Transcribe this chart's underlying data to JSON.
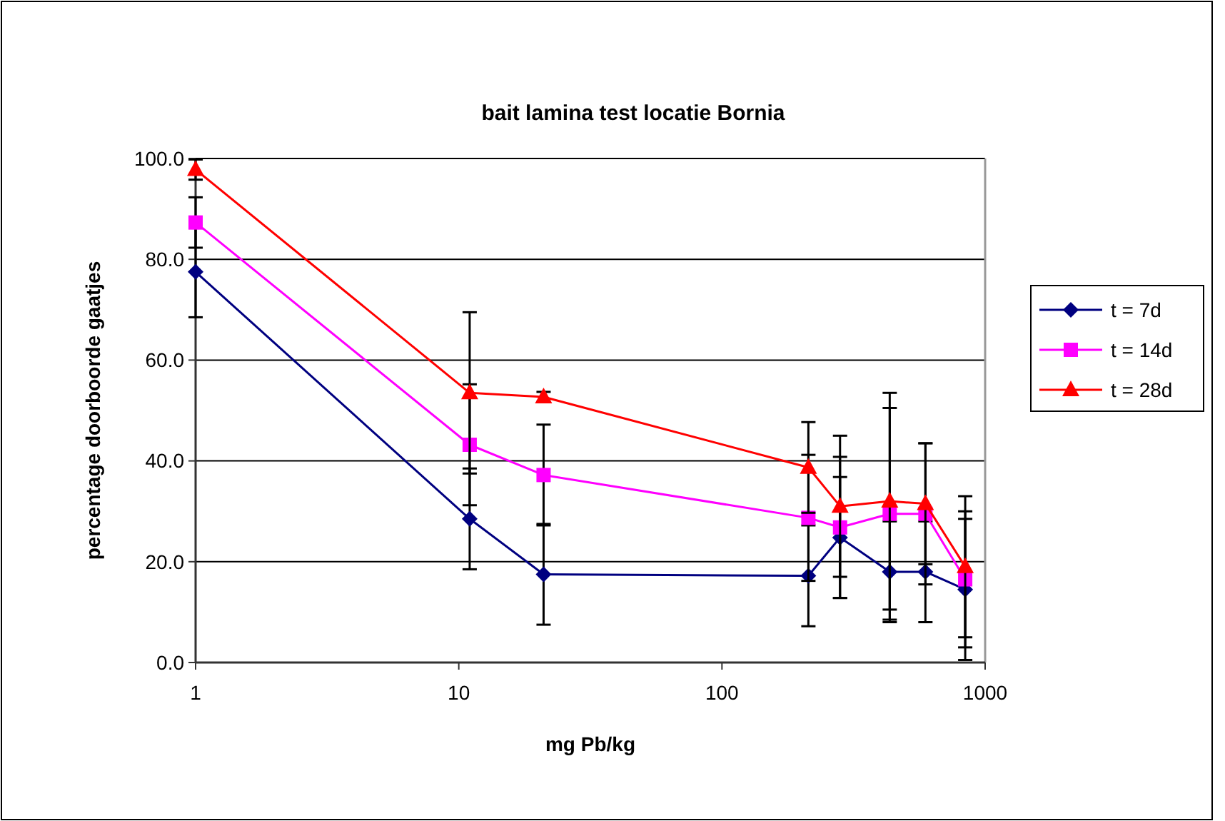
{
  "chart_data": {
    "type": "line",
    "title": "bait lamina test locatie Bornia",
    "xlabel": "mg Pb/kg",
    "ylabel": "percentage doorboorde gaatjes",
    "x": [
      1,
      11,
      21,
      213,
      281,
      434,
      593,
      840
    ],
    "log": "x",
    "xlim": [
      1,
      1000
    ],
    "xticks": [
      1,
      10,
      100,
      1000
    ],
    "ylim": [
      0,
      100
    ],
    "yticks": [
      {
        "value": 0,
        "label": "0.0"
      },
      {
        "value": 20,
        "label": "20.0"
      },
      {
        "value": 40,
        "label": "40.0"
      },
      {
        "value": 60,
        "label": "60.0"
      },
      {
        "value": 80,
        "label": "80.0"
      },
      {
        "value": 100,
        "label": "100.0"
      }
    ],
    "grid": "y",
    "legend": "right",
    "line_style": "solid",
    "series": [
      {
        "name": "t = 7d",
        "color": "#000080",
        "marker": "diamond",
        "values": [
          77.5,
          28.5,
          17.5,
          17.2,
          24.8,
          18.0,
          18.0,
          14.5
        ],
        "errors": [
          9,
          10,
          10,
          10,
          12,
          10,
          10,
          14
        ]
      },
      {
        "name": "t = 14d",
        "color": "#ff00ff",
        "marker": "square",
        "values": [
          87.3,
          43.2,
          37.2,
          28.7,
          26.8,
          29.5,
          29.5,
          16.5
        ],
        "errors": [
          5,
          12,
          10,
          12.5,
          14,
          21,
          14,
          13.5
        ]
      },
      {
        "name": "t = 28d",
        "color": "#ff0000",
        "marker": "triangle",
        "values": [
          97.8,
          53.5,
          52.7,
          38.7,
          31.0,
          32.0,
          31.5,
          19.0
        ],
        "errors": [
          2,
          16,
          1,
          9,
          14,
          21.5,
          12,
          14
        ]
      }
    ]
  }
}
